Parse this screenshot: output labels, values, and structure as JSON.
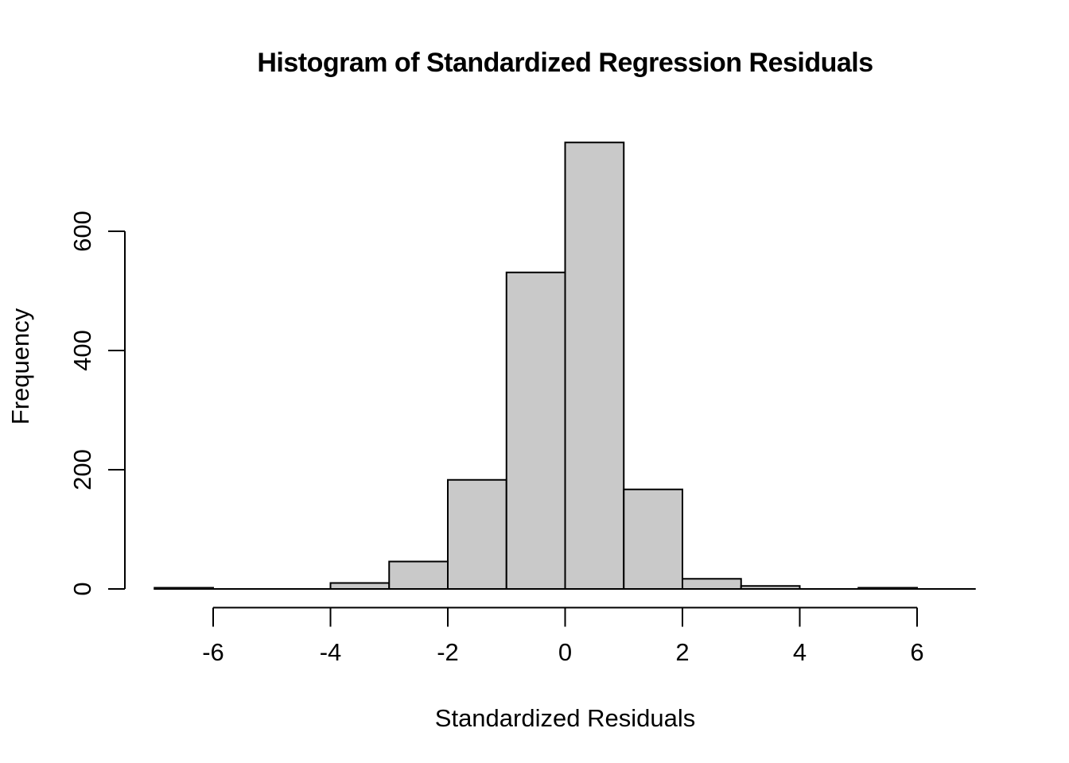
{
  "chart_data": {
    "type": "bar",
    "subtype": "histogram",
    "title": "Histogram of Standardized Regression Residuals",
    "xlabel": "Standardized Residuals",
    "ylabel": "Frequency",
    "bin_start": -7,
    "bin_width": 1,
    "bin_edges": [
      -7,
      -6,
      -5,
      -4,
      -3,
      -2,
      -1,
      0,
      1,
      2,
      3,
      4,
      5,
      6,
      7
    ],
    "frequencies": [
      2,
      0,
      0,
      10,
      46,
      183,
      531,
      749,
      167,
      17,
      5,
      0,
      2,
      0
    ],
    "x_ticks": [
      -6,
      -4,
      -2,
      0,
      2,
      4,
      6
    ],
    "x_tick_labels": [
      "-6",
      "-4",
      "-2",
      "0",
      "2",
      "4",
      "6"
    ],
    "y_ticks": [
      0,
      200,
      400,
      600
    ],
    "y_tick_labels": [
      "0",
      "200",
      "400",
      "600"
    ],
    "xlim": [
      -7,
      7
    ],
    "ylim": [
      0,
      750
    ],
    "grid": false,
    "legend": "none",
    "bar_fill": "#c9c9c9",
    "bar_stroke": "#000000",
    "axis_color": "#000000",
    "background": "#ffffff"
  }
}
